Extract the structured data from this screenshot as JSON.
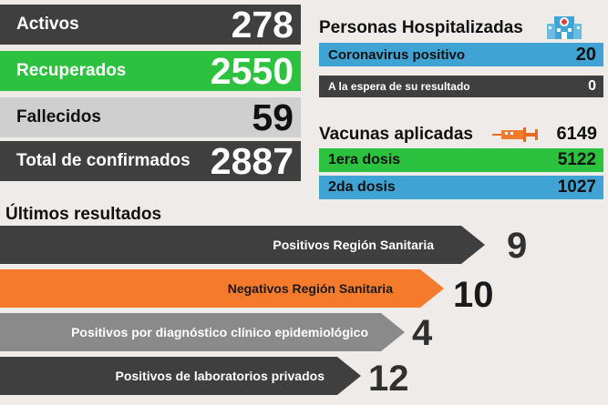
{
  "stats": [
    {
      "label": "Activos",
      "value": "278",
      "bg": "#3f3f3f",
      "label_color": "#ffffff",
      "num_color": "#ffffff"
    },
    {
      "label": "Recuperados",
      "value": "2550",
      "bg": "#2cc13e",
      "label_color": "#ffffff",
      "num_color": "#ffffff"
    },
    {
      "label": "Fallecidos",
      "value": "59",
      "bg": "#cfcfcf",
      "label_color": "#111111",
      "num_color": "#111111"
    },
    {
      "label": "Total de confirmados",
      "value": "2887",
      "bg": "#3f3f3f",
      "label_color": "#ffffff",
      "num_color": "#ffffff"
    }
  ],
  "hospitalizados": {
    "title": "Personas Hospitalizadas",
    "icon": "hospital-icon",
    "rows": [
      {
        "label": "Coronavirus positivo",
        "value": "20",
        "bg": "#3fa4d3"
      },
      {
        "label": "A la espera de su resultado",
        "value": "0",
        "bg": "#3f3f3f"
      }
    ]
  },
  "vacunas": {
    "title": "Vacunas aplicadas",
    "icon": "syringe-icon",
    "total": "6149",
    "rows": [
      {
        "label": "1era dosis",
        "value": "5122",
        "bg": "#2cc13e"
      },
      {
        "label": "2da dosis",
        "value": "1027",
        "bg": "#3fa4d3"
      }
    ]
  },
  "ultimos": {
    "title": "Últimos resultados",
    "rows": [
      {
        "label": "Positivos Región Sanitaria",
        "value": "9",
        "bg": "#3f3f3f",
        "label_color": "#ffffff"
      },
      {
        "label": "Negativos Región Sanitaria",
        "value": "10",
        "bg": "#f47a2c",
        "label_color": "#1a1a1a"
      },
      {
        "label": "Positivos por diagnóstico clínico epidemiológico",
        "value": "4",
        "bg": "#8a8a8a",
        "label_color": "#ffffff"
      },
      {
        "label": "Positivos de laboratorios privados",
        "value": "12",
        "bg": "#3f3f3f",
        "label_color": "#ffffff"
      }
    ]
  },
  "colors": {
    "background": "#efebe8",
    "dark": "#3f3f3f",
    "green": "#2cc13e",
    "blue": "#3fa4d3",
    "orange": "#f47a2c",
    "grey": "#8a8a8a",
    "light_grey": "#cfcfcf"
  }
}
